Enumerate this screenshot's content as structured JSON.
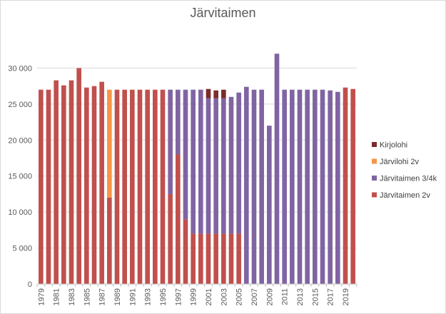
{
  "chart_data": {
    "type": "bar",
    "stacked": true,
    "title": "Järvitaimen",
    "xlabel": "",
    "ylabel": "",
    "ylim": [
      0,
      35000
    ],
    "yticks": [
      0,
      5000,
      10000,
      15000,
      20000,
      25000,
      30000
    ],
    "ytick_labels": [
      "0",
      "5 000",
      "10 000",
      "15 000",
      "20 000",
      "25 000",
      "30 000"
    ],
    "categories": [
      "1979",
      "1980",
      "1981",
      "1982",
      "1983",
      "1984",
      "1985",
      "1986",
      "1987",
      "1988",
      "1989",
      "1990",
      "1991",
      "1992",
      "1993",
      "1994",
      "1995",
      "1996",
      "1997",
      "1998",
      "1999",
      "2000",
      "2001",
      "2002",
      "2003",
      "2004",
      "2005",
      "2006",
      "2007",
      "2008",
      "2009",
      "2010",
      "2011",
      "2012",
      "2013",
      "2014",
      "2015",
      "2016",
      "2017",
      "2018",
      "2019",
      "2020"
    ],
    "grid": true,
    "legend_position": "right",
    "series": [
      {
        "name": "Järvitaimen 2v",
        "color": "#c0504d",
        "values": [
          27000,
          27000,
          28300,
          27600,
          28300,
          30000,
          27300,
          27500,
          28100,
          12000,
          27000,
          27000,
          27000,
          27000,
          27000,
          27000,
          27000,
          12500,
          18000,
          9000,
          7000,
          7000,
          7000,
          7000,
          7000,
          7000,
          7000,
          0,
          0,
          0,
          0,
          0,
          0,
          0,
          0,
          0,
          0,
          0,
          0,
          0,
          27300,
          27100
        ]
      },
      {
        "name": "Järvitaimen 3/4k",
        "color": "#8064a2",
        "values": [
          0,
          0,
          0,
          0,
          0,
          0,
          0,
          0,
          0,
          0,
          0,
          0,
          0,
          0,
          0,
          0,
          0,
          14500,
          9000,
          18000,
          20000,
          20000,
          18800,
          18800,
          18800,
          19000,
          19600,
          27400,
          27000,
          27000,
          22000,
          32000,
          27000,
          27000,
          27000,
          27000,
          27000,
          27000,
          26900,
          26700,
          0,
          0
        ]
      },
      {
        "name": "Järvilohi 2v",
        "color": "#f79646",
        "values": [
          0,
          0,
          0,
          0,
          0,
          0,
          0,
          0,
          0,
          15000,
          0,
          0,
          0,
          0,
          0,
          0,
          0,
          0,
          0,
          0,
          0,
          0,
          0,
          0,
          0,
          0,
          0,
          0,
          0,
          0,
          0,
          0,
          0,
          0,
          0,
          0,
          0,
          0,
          0,
          0,
          0,
          0
        ]
      },
      {
        "name": "Kirjolohi",
        "color": "#7b2c2c",
        "values": [
          0,
          0,
          0,
          0,
          0,
          0,
          0,
          0,
          0,
          0,
          0,
          0,
          0,
          0,
          0,
          0,
          0,
          0,
          0,
          0,
          0,
          0,
          1300,
          1100,
          1200,
          0,
          0,
          0,
          0,
          0,
          0,
          0,
          0,
          0,
          0,
          0,
          0,
          0,
          0,
          0,
          0,
          0
        ]
      }
    ],
    "legend_order": [
      "Kirjolohi",
      "Järvilohi 2v",
      "Järvitaimen 3/4k",
      "Järvitaimen 2v"
    ],
    "axis_color": "#bfbfbf",
    "grid_color": "#d9d9d9"
  }
}
